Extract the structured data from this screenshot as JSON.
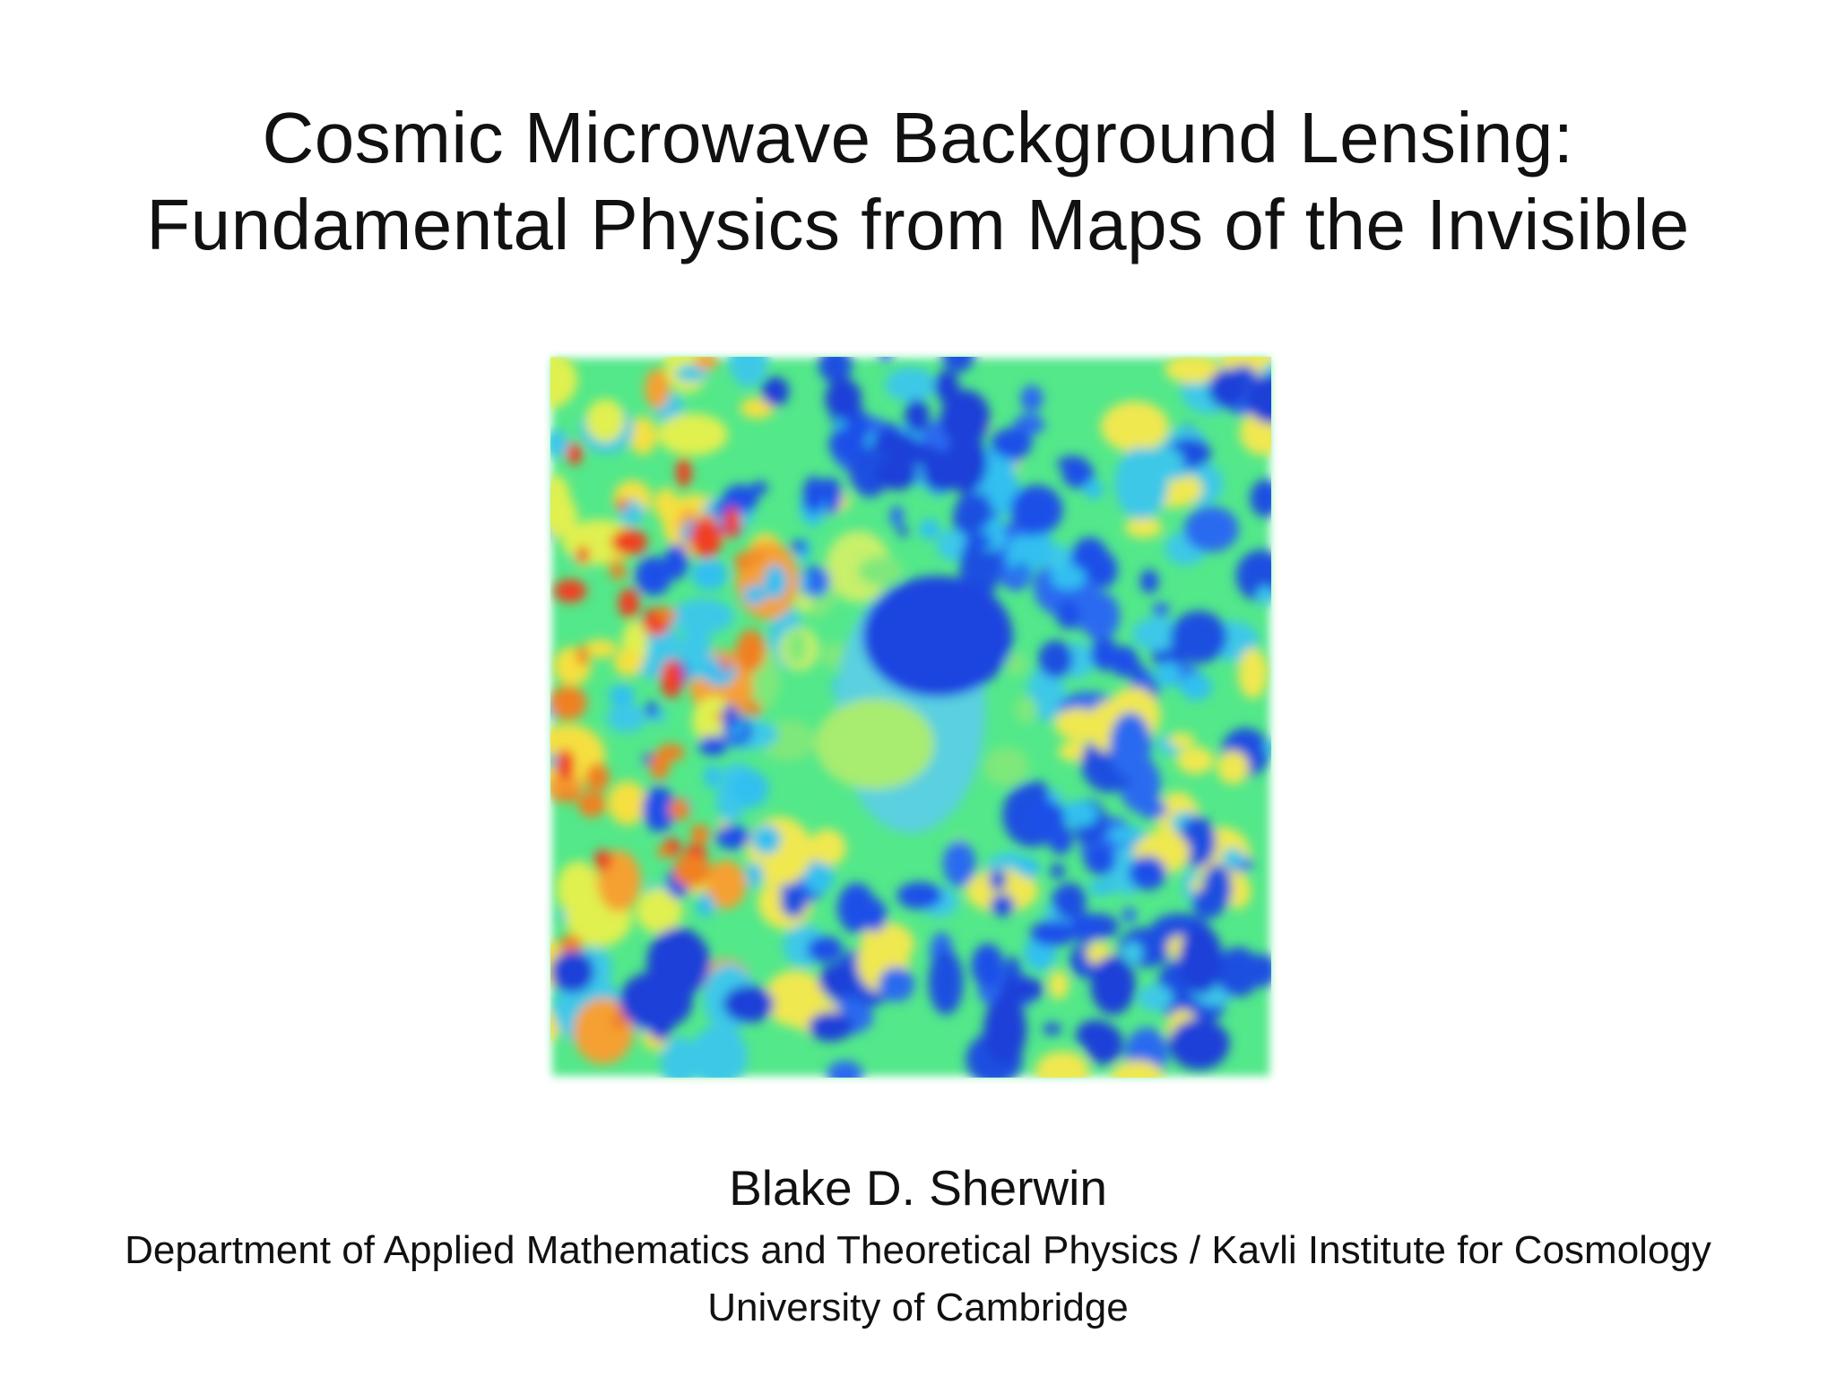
{
  "title": {
    "lines": [
      "Cosmic Microwave Background Lensing:",
      "Fundamental Physics from Maps of the Invisible"
    ]
  },
  "author": {
    "name": "Blake D. Sherwin",
    "affiliation": "Department of Applied Mathematics and Theoretical Physics / Kavli Institute for Cosmology",
    "institution": "University of Cambridge"
  }
}
